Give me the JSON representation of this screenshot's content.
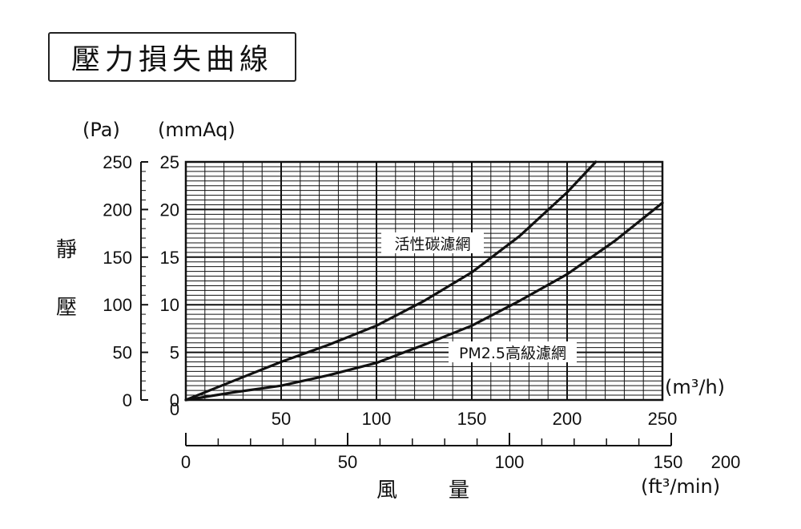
{
  "title": "壓力損失曲線",
  "chart_data": {
    "type": "line",
    "title": "壓力損失曲線",
    "xlabel": "風 量",
    "ylabel": "靜壓",
    "x_unit": "(m³/h)",
    "x2_unit": "(ft³/min)",
    "y_unit_pa": "(Pa)",
    "y_unit_mmaq": "(mmAq)",
    "xlim": [
      0,
      250
    ],
    "ylim_pa": [
      0,
      250
    ],
    "ylim_mmaq": [
      0,
      25
    ],
    "x_ticks": [
      "50",
      "100",
      "150",
      "200",
      "250"
    ],
    "x_origin_label": "0",
    "x2_ticks": [
      "0",
      "50",
      "100",
      "150",
      "200"
    ],
    "y_ticks_pa": [
      "0",
      "50",
      "100",
      "150",
      "200",
      "250"
    ],
    "y_ticks_mmaq": [
      "0",
      "5",
      "10",
      "15",
      "20",
      "25"
    ],
    "grid": true,
    "series": [
      {
        "name": "活性碳濾網",
        "x": [
          0,
          25,
          50,
          75,
          100,
          125,
          150,
          175,
          200,
          215
        ],
        "y": [
          0,
          20,
          40,
          58,
          78,
          104,
          134,
          172,
          218,
          250
        ]
      },
      {
        "name": "PM2.5高級濾網",
        "x": [
          0,
          25,
          50,
          75,
          100,
          125,
          150,
          175,
          200,
          225,
          250
        ],
        "y": [
          0,
          8,
          15,
          26,
          39,
          58,
          78,
          104,
          132,
          167,
          207
        ]
      }
    ]
  }
}
